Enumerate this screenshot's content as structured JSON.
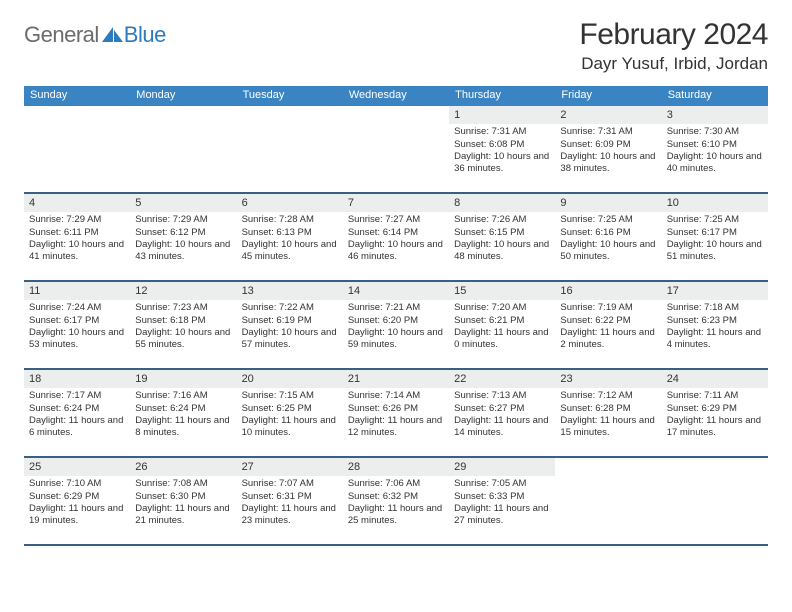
{
  "logo": {
    "general": "General",
    "blue": "Blue",
    "icon_color": "#2b7bbd"
  },
  "title": "February 2024",
  "location": "Dayr Yusuf, Irbid, Jordan",
  "colors": {
    "header_bg": "#3a84c4",
    "header_text": "#ffffff",
    "row_border": "#3a5f85",
    "daynum_bg": "#eceded",
    "text": "#333333",
    "background": "#ffffff"
  },
  "day_headers": [
    "Sunday",
    "Monday",
    "Tuesday",
    "Wednesday",
    "Thursday",
    "Friday",
    "Saturday"
  ],
  "weeks": [
    [
      null,
      null,
      null,
      null,
      {
        "num": "1",
        "sunrise": "Sunrise: 7:31 AM",
        "sunset": "Sunset: 6:08 PM",
        "daylight": "Daylight: 10 hours and 36 minutes."
      },
      {
        "num": "2",
        "sunrise": "Sunrise: 7:31 AM",
        "sunset": "Sunset: 6:09 PM",
        "daylight": "Daylight: 10 hours and 38 minutes."
      },
      {
        "num": "3",
        "sunrise": "Sunrise: 7:30 AM",
        "sunset": "Sunset: 6:10 PM",
        "daylight": "Daylight: 10 hours and 40 minutes."
      }
    ],
    [
      {
        "num": "4",
        "sunrise": "Sunrise: 7:29 AM",
        "sunset": "Sunset: 6:11 PM",
        "daylight": "Daylight: 10 hours and 41 minutes."
      },
      {
        "num": "5",
        "sunrise": "Sunrise: 7:29 AM",
        "sunset": "Sunset: 6:12 PM",
        "daylight": "Daylight: 10 hours and 43 minutes."
      },
      {
        "num": "6",
        "sunrise": "Sunrise: 7:28 AM",
        "sunset": "Sunset: 6:13 PM",
        "daylight": "Daylight: 10 hours and 45 minutes."
      },
      {
        "num": "7",
        "sunrise": "Sunrise: 7:27 AM",
        "sunset": "Sunset: 6:14 PM",
        "daylight": "Daylight: 10 hours and 46 minutes."
      },
      {
        "num": "8",
        "sunrise": "Sunrise: 7:26 AM",
        "sunset": "Sunset: 6:15 PM",
        "daylight": "Daylight: 10 hours and 48 minutes."
      },
      {
        "num": "9",
        "sunrise": "Sunrise: 7:25 AM",
        "sunset": "Sunset: 6:16 PM",
        "daylight": "Daylight: 10 hours and 50 minutes."
      },
      {
        "num": "10",
        "sunrise": "Sunrise: 7:25 AM",
        "sunset": "Sunset: 6:17 PM",
        "daylight": "Daylight: 10 hours and 51 minutes."
      }
    ],
    [
      {
        "num": "11",
        "sunrise": "Sunrise: 7:24 AM",
        "sunset": "Sunset: 6:17 PM",
        "daylight": "Daylight: 10 hours and 53 minutes."
      },
      {
        "num": "12",
        "sunrise": "Sunrise: 7:23 AM",
        "sunset": "Sunset: 6:18 PM",
        "daylight": "Daylight: 10 hours and 55 minutes."
      },
      {
        "num": "13",
        "sunrise": "Sunrise: 7:22 AM",
        "sunset": "Sunset: 6:19 PM",
        "daylight": "Daylight: 10 hours and 57 minutes."
      },
      {
        "num": "14",
        "sunrise": "Sunrise: 7:21 AM",
        "sunset": "Sunset: 6:20 PM",
        "daylight": "Daylight: 10 hours and 59 minutes."
      },
      {
        "num": "15",
        "sunrise": "Sunrise: 7:20 AM",
        "sunset": "Sunset: 6:21 PM",
        "daylight": "Daylight: 11 hours and 0 minutes."
      },
      {
        "num": "16",
        "sunrise": "Sunrise: 7:19 AM",
        "sunset": "Sunset: 6:22 PM",
        "daylight": "Daylight: 11 hours and 2 minutes."
      },
      {
        "num": "17",
        "sunrise": "Sunrise: 7:18 AM",
        "sunset": "Sunset: 6:23 PM",
        "daylight": "Daylight: 11 hours and 4 minutes."
      }
    ],
    [
      {
        "num": "18",
        "sunrise": "Sunrise: 7:17 AM",
        "sunset": "Sunset: 6:24 PM",
        "daylight": "Daylight: 11 hours and 6 minutes."
      },
      {
        "num": "19",
        "sunrise": "Sunrise: 7:16 AM",
        "sunset": "Sunset: 6:24 PM",
        "daylight": "Daylight: 11 hours and 8 minutes."
      },
      {
        "num": "20",
        "sunrise": "Sunrise: 7:15 AM",
        "sunset": "Sunset: 6:25 PM",
        "daylight": "Daylight: 11 hours and 10 minutes."
      },
      {
        "num": "21",
        "sunrise": "Sunrise: 7:14 AM",
        "sunset": "Sunset: 6:26 PM",
        "daylight": "Daylight: 11 hours and 12 minutes."
      },
      {
        "num": "22",
        "sunrise": "Sunrise: 7:13 AM",
        "sunset": "Sunset: 6:27 PM",
        "daylight": "Daylight: 11 hours and 14 minutes."
      },
      {
        "num": "23",
        "sunrise": "Sunrise: 7:12 AM",
        "sunset": "Sunset: 6:28 PM",
        "daylight": "Daylight: 11 hours and 15 minutes."
      },
      {
        "num": "24",
        "sunrise": "Sunrise: 7:11 AM",
        "sunset": "Sunset: 6:29 PM",
        "daylight": "Daylight: 11 hours and 17 minutes."
      }
    ],
    [
      {
        "num": "25",
        "sunrise": "Sunrise: 7:10 AM",
        "sunset": "Sunset: 6:29 PM",
        "daylight": "Daylight: 11 hours and 19 minutes."
      },
      {
        "num": "26",
        "sunrise": "Sunrise: 7:08 AM",
        "sunset": "Sunset: 6:30 PM",
        "daylight": "Daylight: 11 hours and 21 minutes."
      },
      {
        "num": "27",
        "sunrise": "Sunrise: 7:07 AM",
        "sunset": "Sunset: 6:31 PM",
        "daylight": "Daylight: 11 hours and 23 minutes."
      },
      {
        "num": "28",
        "sunrise": "Sunrise: 7:06 AM",
        "sunset": "Sunset: 6:32 PM",
        "daylight": "Daylight: 11 hours and 25 minutes."
      },
      {
        "num": "29",
        "sunrise": "Sunrise: 7:05 AM",
        "sunset": "Sunset: 6:33 PM",
        "daylight": "Daylight: 11 hours and 27 minutes."
      },
      null,
      null
    ]
  ]
}
